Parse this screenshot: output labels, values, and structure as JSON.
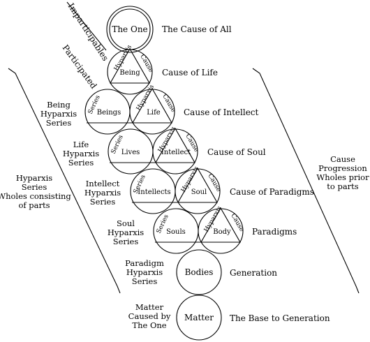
{
  "diagram": {
    "bands": {
      "imparticipables": "Imparticipables",
      "participated": "Participated"
    },
    "top_circle": {
      "label": "The One",
      "description": "The Cause of All"
    },
    "rows": [
      {
        "left": "Hyparxis",
        "center": "Being",
        "right": "Cause",
        "description": "Cause of Life"
      },
      {
        "left": "Hyparxis",
        "center": "Life",
        "right": "Cause",
        "series": "Series",
        "series_center": "Beings",
        "description": "Cause of Intellect",
        "side": [
          "Being",
          "Hyparxis",
          "Series"
        ]
      },
      {
        "left": "Hyparxis",
        "center": "Intellect",
        "right": "Cause",
        "series": "Series",
        "series_center": "Lives",
        "description": "Cause of Soul",
        "side": [
          "Life",
          "Hyparxis",
          "Series"
        ]
      },
      {
        "left": "Hyparxis",
        "center": "Soul",
        "right": "Cause",
        "series": "Series",
        "series_center": "Intellects",
        "description": "Cause of Paradigms",
        "side": [
          "Intellect",
          "Hyparxis",
          "Series"
        ]
      },
      {
        "left": "Hyparxis",
        "center": "Body",
        "right": "Cause",
        "series": "Series",
        "series_center": "Souls",
        "description": "Paradigms",
        "side": [
          "Soul",
          "Hyparxis",
          "Series"
        ]
      }
    ],
    "bodies": {
      "label": "Bodies",
      "description": "Generation",
      "side": [
        "Paradigm",
        "Hyparxis",
        "Series"
      ]
    },
    "matter": {
      "label": "Matter",
      "description": "The Base to Generation",
      "side": [
        "Matter",
        "Caused by",
        "The One"
      ]
    },
    "left_brace": [
      "Hyparxis",
      "Series",
      "Wholes consisting",
      "of parts"
    ],
    "right_brace": [
      "Cause",
      "Progression",
      "Wholes prior",
      "to parts"
    ]
  }
}
